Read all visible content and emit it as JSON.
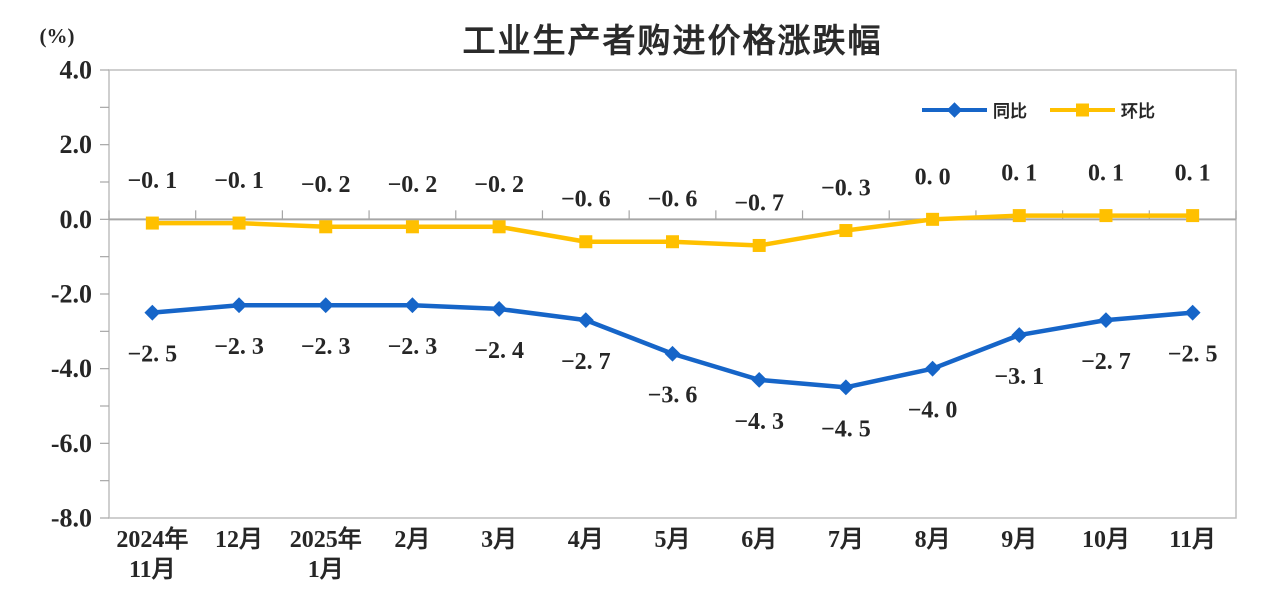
{
  "title": "工业生产者购进价格涨跌幅",
  "unit_label": "(%)",
  "colors": {
    "tongbi_blue": "#1665C8",
    "huanbi_yellow": "#FFC000",
    "zero_line_gray": "#A6A6A6",
    "border_gray": "#BFBFBF",
    "tick_gray": "#A6A6A6",
    "text_dark": "#262626"
  },
  "legend": {
    "items": [
      {
        "label": "同比",
        "marker": "diamond",
        "color_key": "tongbi_blue"
      },
      {
        "label": "环比",
        "marker": "square",
        "color_key": "huanbi_yellow"
      }
    ]
  },
  "chart_data": {
    "type": "line",
    "title": "工业生产者购进价格涨跌幅",
    "unit": "(%)",
    "categories": [
      "2024年11月",
      "12月",
      "2025年1月",
      "2月",
      "3月",
      "4月",
      "5月",
      "6月",
      "7月",
      "8月",
      "9月",
      "10月",
      "11月"
    ],
    "category_display": [
      [
        "2024年",
        "11月"
      ],
      [
        "12月"
      ],
      [
        "2025年",
        "1月"
      ],
      [
        "2月"
      ],
      [
        "3月"
      ],
      [
        "4月"
      ],
      [
        "5月"
      ],
      [
        "6月"
      ],
      [
        "7月"
      ],
      [
        "8月"
      ],
      [
        "9月"
      ],
      [
        "10月"
      ],
      [
        "11月"
      ]
    ],
    "series": [
      {
        "name": "同比",
        "marker": "diamond",
        "color_key": "tongbi_blue",
        "label_position": "below",
        "values": [
          -2.5,
          -2.3,
          -2.3,
          -2.3,
          -2.4,
          -2.7,
          -3.6,
          -4.3,
          -4.5,
          -4.0,
          -3.1,
          -2.7,
          -2.5
        ],
        "labels": [
          "−2. 5",
          "−2. 3",
          "−2. 3",
          "−2. 3",
          "−2. 4",
          "−2. 7",
          "−3. 6",
          "−4. 3",
          "−4. 5",
          "−4. 0",
          "−3. 1",
          "−2. 7",
          "−2. 5"
        ]
      },
      {
        "name": "环比",
        "marker": "square",
        "color_key": "huanbi_yellow",
        "label_position": "above",
        "values": [
          -0.1,
          -0.1,
          -0.2,
          -0.2,
          -0.2,
          -0.6,
          -0.6,
          -0.7,
          -0.3,
          0.0,
          0.1,
          0.1,
          0.1
        ],
        "labels": [
          "−0. 1",
          "−0. 1",
          "−0. 2",
          "−0. 2",
          "−0. 2",
          "−0. 6",
          "−0. 6",
          "−0. 7",
          "−0. 3",
          "0. 0",
          "0. 1",
          "0. 1",
          "0. 1"
        ]
      }
    ],
    "ylim": [
      -8.0,
      4.0
    ],
    "ytick_labels": [
      "4.0",
      "2.0",
      "0.0",
      "-2.0",
      "-4.0",
      "-6.0",
      "-8.0"
    ],
    "minor_ytick_step": 1.0,
    "grid": false,
    "zero_line": true,
    "legend_position": "top-right-inside"
  }
}
